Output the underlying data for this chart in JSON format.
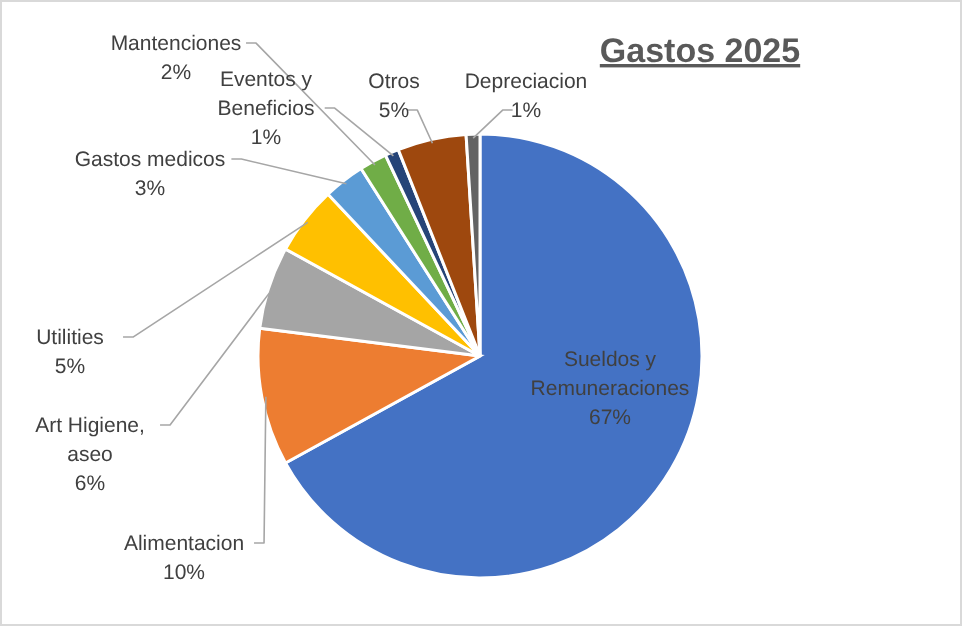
{
  "chart_data": {
    "type": "pie",
    "title": "Gastos 2025",
    "categories": [
      "Sueldos  y Remuneraciones",
      "Alimentacion",
      "Art Higiene, aseo",
      "Utilities",
      "Gastos medicos",
      "Mantenciones",
      "Eventos y Beneficios",
      "Otros",
      "Depreciacion"
    ],
    "values": [
      67,
      10,
      6,
      5,
      3,
      2,
      1,
      5,
      1
    ],
    "value_labels": [
      "67%",
      "10%",
      "6%",
      "5%",
      "3%",
      "2%",
      "1%",
      "5%",
      "1%"
    ],
    "colors": [
      "#4472c4",
      "#ed7d31",
      "#a5a5a5",
      "#ffc000",
      "#5b9bd5",
      "#70ad47",
      "#264478",
      "#9e480e",
      "#636363"
    ]
  }
}
